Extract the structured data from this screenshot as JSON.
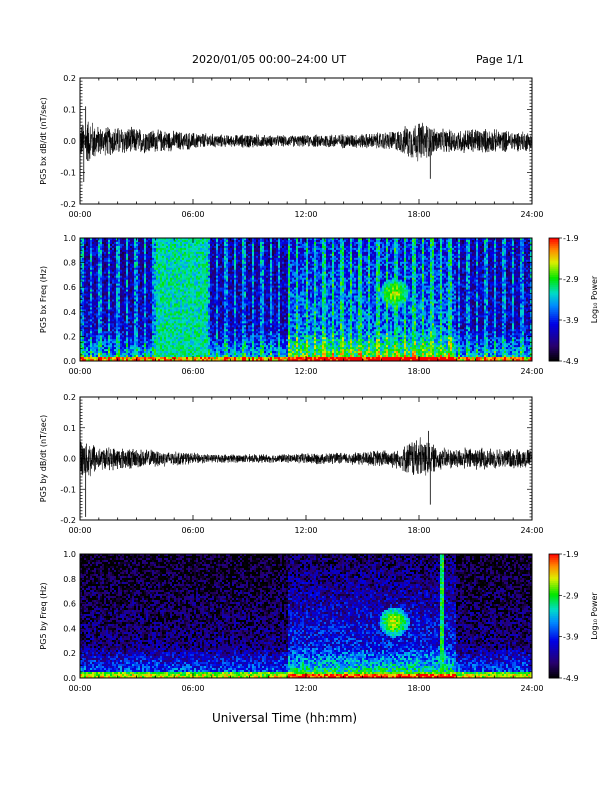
{
  "header": {
    "title": "2020/01/05  00:00–24:00 UT",
    "page": "Page 1/1"
  },
  "xaxis_label": "Universal Time (hh:mm)",
  "chart_data": [
    {
      "type": "line",
      "ylabel": "PG5 bx dB/dt (nT/sec)",
      "xlim": [
        0,
        24
      ],
      "x_ticks": [
        "00:00",
        "06:00",
        "12:00",
        "18:00",
        "24:00"
      ],
      "ylim": [
        -0.2,
        0.2
      ],
      "y_ticks": [
        "0.2",
        "0.1",
        "0.0",
        "-0.1",
        "-0.2"
      ],
      "envelope_hours": [
        0,
        0.5,
        1,
        2,
        3,
        4,
        5,
        6,
        7,
        8,
        9,
        10,
        11,
        12,
        13,
        14,
        15,
        16,
        17,
        17.5,
        18,
        18.5,
        19,
        20,
        21,
        22,
        23,
        24
      ],
      "envelope_amplitude": [
        0.06,
        0.08,
        0.05,
        0.05,
        0.045,
        0.04,
        0.035,
        0.03,
        0.025,
        0.02,
        0.025,
        0.02,
        0.02,
        0.02,
        0.025,
        0.025,
        0.025,
        0.03,
        0.04,
        0.06,
        0.07,
        0.06,
        0.04,
        0.04,
        0.045,
        0.04,
        0.035,
        0.035
      ],
      "peaks": [
        {
          "x": 0.2,
          "y": -0.13
        },
        {
          "x": 0.3,
          "y": 0.11
        },
        {
          "x": 18.6,
          "y": -0.12
        }
      ]
    },
    {
      "type": "heatmap",
      "ylabel": "PG5 bx Freq (Hz)",
      "colorbar_label": "Log₁₀ Power",
      "xlim": [
        0,
        24
      ],
      "x_ticks": [
        "00:00",
        "06:00",
        "12:00",
        "18:00",
        "24:00"
      ],
      "ylim": [
        0,
        1
      ],
      "y_ticks": [
        "1.0",
        "0.8",
        "0.6",
        "0.4",
        "0.2",
        "0.0"
      ],
      "color_range": [
        -4.9,
        -1.9
      ],
      "colorbar_ticks": [
        "-1.9",
        "-2.9",
        "-3.9",
        "-4.9"
      ],
      "features": [
        {
          "label": "broadband enhancement",
          "from_hours": 4.0,
          "to_hours": 6.8,
          "freq_hz": [
            0.0,
            1.0
          ],
          "level": -2.9
        },
        {
          "label": "emission",
          "center_hours": 16.7,
          "center_hz": 0.55,
          "level": -2.6
        },
        {
          "label": "low-frequency band",
          "from_hours": 0,
          "to_hours": 24,
          "freq_hz": [
            0.0,
            0.03
          ],
          "level": -2.5
        }
      ]
    },
    {
      "type": "line",
      "ylabel": "PG5 by dB/dt (nT/sec)",
      "xlim": [
        0,
        24
      ],
      "x_ticks": [
        "00:00",
        "06:00",
        "12:00",
        "18:00",
        "24:00"
      ],
      "ylim": [
        -0.2,
        0.2
      ],
      "y_ticks": [
        "0.2",
        "0.1",
        "0.0",
        "-0.1",
        "-0.2"
      ],
      "envelope_hours": [
        0,
        0.5,
        1,
        2,
        3,
        4,
        5,
        6,
        7,
        8,
        9,
        10,
        11,
        12,
        13,
        14,
        15,
        16,
        17,
        17.5,
        18,
        18.5,
        19,
        20,
        21,
        22,
        23,
        24
      ],
      "envelope_amplitude": [
        0.06,
        0.07,
        0.04,
        0.04,
        0.035,
        0.03,
        0.025,
        0.02,
        0.015,
        0.015,
        0.015,
        0.015,
        0.015,
        0.02,
        0.02,
        0.02,
        0.025,
        0.03,
        0.035,
        0.06,
        0.08,
        0.06,
        0.04,
        0.035,
        0.04,
        0.035,
        0.035,
        0.035
      ],
      "peaks": [
        {
          "x": 0.3,
          "y": -0.19
        },
        {
          "x": 18.6,
          "y": -0.15
        },
        {
          "x": 18.5,
          "y": 0.09
        }
      ]
    },
    {
      "type": "heatmap",
      "ylabel": "PG5 by Freq (Hz)",
      "colorbar_label": "Log₁₀ Power",
      "xlim": [
        0,
        24
      ],
      "x_ticks": [
        "00:00",
        "06:00",
        "12:00",
        "18:00",
        "24:00"
      ],
      "ylim": [
        0,
        1
      ],
      "y_ticks": [
        "1.0",
        "0.8",
        "0.6",
        "0.4",
        "0.2",
        "0.0"
      ],
      "color_range": [
        -4.9,
        -1.9
      ],
      "colorbar_ticks": [
        "-1.9",
        "-2.9",
        "-3.9",
        "-4.9"
      ],
      "features": [
        {
          "label": "emission",
          "center_hours": 16.7,
          "center_hz": 0.45,
          "level": -2.6
        },
        {
          "label": "narrowband line",
          "center_hours": 19.2,
          "freq_hz": [
            0.0,
            1.0
          ],
          "level": -3.0
        },
        {
          "label": "low-frequency band",
          "from_hours": 0,
          "to_hours": 24,
          "freq_hz": [
            0.0,
            0.05
          ],
          "level": -2.5
        }
      ]
    }
  ]
}
